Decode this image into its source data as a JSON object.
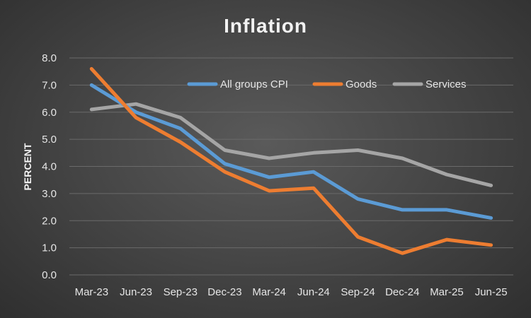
{
  "chart_data": {
    "type": "line",
    "title": "Inflation",
    "xlabel": "",
    "ylabel": "PERCENT",
    "ylim": [
      0,
      8
    ],
    "y_ticks": [
      "0.0",
      "1.0",
      "2.0",
      "3.0",
      "4.0",
      "5.0",
      "6.0",
      "7.0",
      "8.0"
    ],
    "grid": true,
    "legend_position": "top-right",
    "categories": [
      "Mar-23",
      "Jun-23",
      "Sep-23",
      "Dec-23",
      "Mar-24",
      "Jun-24",
      "Sep-24",
      "Dec-24",
      "Mar-25",
      "Jun-25"
    ],
    "series": [
      {
        "name": "All groups CPI",
        "color": "#5b9bd5",
        "values": [
          7.0,
          6.0,
          5.4,
          4.1,
          3.6,
          3.8,
          2.8,
          2.4,
          2.4,
          2.1
        ]
      },
      {
        "name": "Goods",
        "color": "#ed7d31",
        "values": [
          7.6,
          5.8,
          4.9,
          3.8,
          3.1,
          3.2,
          1.4,
          0.8,
          1.3,
          1.1
        ]
      },
      {
        "name": "Services",
        "color": "#a5a5a5",
        "values": [
          6.1,
          6.3,
          5.8,
          4.6,
          4.3,
          4.5,
          4.6,
          4.3,
          3.7,
          3.3
        ]
      }
    ]
  }
}
